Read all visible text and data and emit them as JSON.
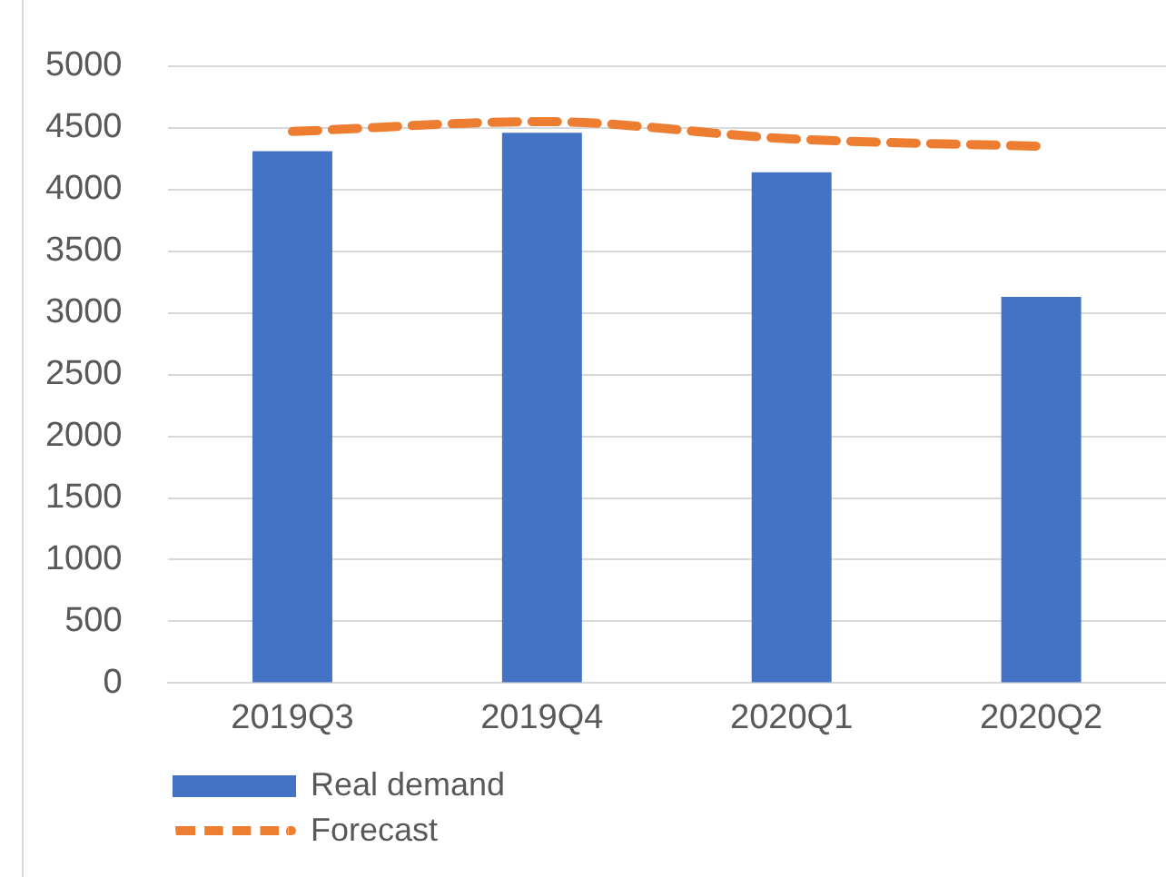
{
  "chart_data": {
    "type": "bar",
    "categories": [
      "2019Q3",
      "2019Q4",
      "2020Q1",
      "2020Q2"
    ],
    "series": [
      {
        "name": "Real demand",
        "color": "#4472c4",
        "values": [
          4310,
          4460,
          4140,
          3130
        ]
      },
      {
        "name": "Forecast",
        "type": "line",
        "color": "#ed7d31",
        "line_style": "dashed",
        "marker": "none",
        "values": [
          4470,
          4550,
          4410,
          4350
        ]
      }
    ],
    "ylim": [
      0,
      5000
    ],
    "yticks": [
      0,
      500,
      1000,
      1500,
      2000,
      2500,
      3000,
      3500,
      4000,
      4500,
      5000
    ],
    "grid": "y",
    "legend": "bottom left"
  }
}
